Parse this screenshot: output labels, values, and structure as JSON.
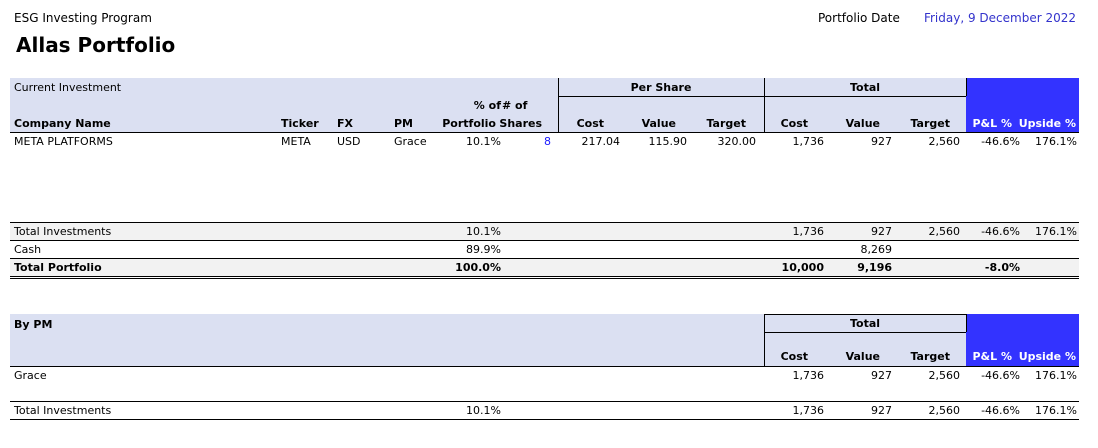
{
  "header": {
    "program": "ESG Investing Program",
    "portfolio_name": "Allas Portfolio",
    "portfolio_date_label": "Portfolio Date",
    "portfolio_date_value": "Friday, 9 December 2022"
  },
  "investment_table": {
    "section_label": "Current Investment",
    "group_per_share": "Per Share",
    "group_total": "Total",
    "col_pct_top": "% of",
    "col_shares_top": "# of",
    "columns": {
      "company": "Company Name",
      "ticker": "Ticker",
      "fx": "FX",
      "pm": "PM",
      "pct": "Portfolio",
      "shares": "Shares",
      "ps_cost": "Cost",
      "ps_value": "Value",
      "ps_target": "Target",
      "t_cost": "Cost",
      "t_value": "Value",
      "t_target": "Target",
      "pl": "P&L %",
      "upside": "Upside %"
    },
    "rows": [
      {
        "company": "META PLATFORMS",
        "ticker": "META",
        "fx": "USD",
        "pm": "Grace",
        "pct": "10.1%",
        "shares": "8",
        "ps_cost": "217.04",
        "ps_value": "115.90",
        "ps_target": "320.00",
        "t_cost": "1,736",
        "t_value": "927",
        "t_target": "2,560",
        "pl": "-46.6%",
        "upside": "176.1%"
      }
    ],
    "totals": {
      "label": "Total Investments",
      "pct": "10.1%",
      "t_cost": "1,736",
      "t_value": "927",
      "t_target": "2,560",
      "pl": "-46.6%",
      "upside": "176.1%"
    },
    "cash": {
      "label": "Cash",
      "pct": "89.9%",
      "t_value": "8,269"
    },
    "portfolio": {
      "label": "Total Portfolio",
      "pct": "100.0%",
      "t_cost": "10,000",
      "t_value": "9,196",
      "pl": "-8.0%"
    }
  },
  "pm_table": {
    "section_label": "By PM",
    "group_total": "Total",
    "columns": {
      "t_cost": "Cost",
      "t_value": "Value",
      "t_target": "Target",
      "pl": "P&L %",
      "upside": "Upside %"
    },
    "rows": [
      {
        "pm": "Grace",
        "t_cost": "1,736",
        "t_value": "927",
        "t_target": "2,560",
        "pl": "-46.6%",
        "upside": "176.1%"
      }
    ],
    "totals": {
      "label": "Total Investments",
      "pct": "10.1%",
      "t_cost": "1,736",
      "t_value": "927",
      "t_target": "2,560",
      "pl": "-46.6%",
      "upside": "176.1%"
    }
  },
  "colors": {
    "header_band": "#dbe0f2",
    "accent_blue": "#3333ff",
    "date_text": "#3333cc",
    "shares_text": "#1a1aff",
    "totals_band": "#f2f2f2"
  }
}
